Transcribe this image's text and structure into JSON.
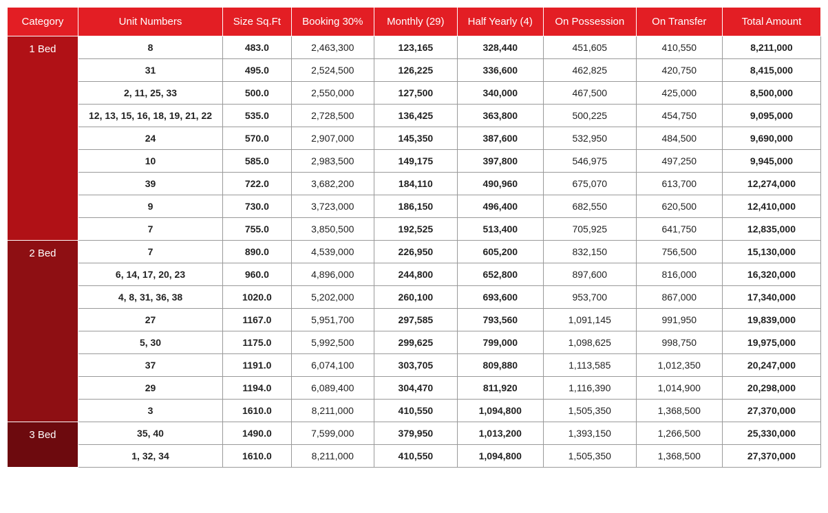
{
  "colors": {
    "header_bg": "#e31e24",
    "cat_bg_1": "#b01116",
    "cat_bg_2": "#8e0f13",
    "cat_bg_3": "#6d0a0e",
    "border": "#999999",
    "text": "#222222",
    "white": "#ffffff"
  },
  "columns": [
    {
      "label": "Category"
    },
    {
      "label": "Unit Numbers"
    },
    {
      "label": "Size Sq.Ft"
    },
    {
      "label": "Booking 30%"
    },
    {
      "label": "Monthly (29)"
    },
    {
      "label": "Half Yearly (4)"
    },
    {
      "label": "On Possession"
    },
    {
      "label": "On Transfer"
    },
    {
      "label": "Total Amount"
    }
  ],
  "bold_columns": [
    true,
    true,
    false,
    true,
    true,
    false,
    false,
    true
  ],
  "categories": [
    {
      "label": "1 Bed",
      "bg": "#b01116",
      "rows": [
        [
          "8",
          "483.0",
          "2,463,300",
          "123,165",
          "328,440",
          "451,605",
          "410,550",
          "8,211,000"
        ],
        [
          "31",
          "495.0",
          "2,524,500",
          "126,225",
          "336,600",
          "462,825",
          "420,750",
          "8,415,000"
        ],
        [
          "2, 11, 25, 33",
          "500.0",
          "2,550,000",
          "127,500",
          "340,000",
          "467,500",
          "425,000",
          "8,500,000"
        ],
        [
          "12, 13, 15, 16, 18, 19, 21, 22",
          "535.0",
          "2,728,500",
          "136,425",
          "363,800",
          "500,225",
          "454,750",
          "9,095,000"
        ],
        [
          "24",
          "570.0",
          "2,907,000",
          "145,350",
          "387,600",
          "532,950",
          "484,500",
          "9,690,000"
        ],
        [
          "10",
          "585.0",
          "2,983,500",
          "149,175",
          "397,800",
          "546,975",
          "497,250",
          "9,945,000"
        ],
        [
          "39",
          "722.0",
          "3,682,200",
          "184,110",
          "490,960",
          "675,070",
          "613,700",
          "12,274,000"
        ],
        [
          "9",
          "730.0",
          "3,723,000",
          "186,150",
          "496,400",
          "682,550",
          "620,500",
          "12,410,000"
        ],
        [
          "7",
          "755.0",
          "3,850,500",
          "192,525",
          "513,400",
          "705,925",
          "641,750",
          "12,835,000"
        ]
      ]
    },
    {
      "label": "2 Bed",
      "bg": "#8e0f13",
      "rows": [
        [
          "7",
          "890.0",
          "4,539,000",
          "226,950",
          "605,200",
          "832,150",
          "756,500",
          "15,130,000"
        ],
        [
          "6, 14, 17, 20, 23",
          "960.0",
          "4,896,000",
          "244,800",
          "652,800",
          "897,600",
          "816,000",
          "16,320,000"
        ],
        [
          "4, 8, 31, 36, 38",
          "1020.0",
          "5,202,000",
          "260,100",
          "693,600",
          "953,700",
          "867,000",
          "17,340,000"
        ],
        [
          "27",
          "1167.0",
          "5,951,700",
          "297,585",
          "793,560",
          "1,091,145",
          "991,950",
          "19,839,000"
        ],
        [
          "5, 30",
          "1175.0",
          "5,992,500",
          "299,625",
          "799,000",
          "1,098,625",
          "998,750",
          "19,975,000"
        ],
        [
          "37",
          "1191.0",
          "6,074,100",
          "303,705",
          "809,880",
          "1,113,585",
          "1,012,350",
          "20,247,000"
        ],
        [
          "29",
          "1194.0",
          "6,089,400",
          "304,470",
          "811,920",
          "1,116,390",
          "1,014,900",
          "20,298,000"
        ],
        [
          "3",
          "1610.0",
          "8,211,000",
          "410,550",
          "1,094,800",
          "1,505,350",
          "1,368,500",
          "27,370,000"
        ]
      ]
    },
    {
      "label": "3 Bed",
      "bg": "#6d0a0e",
      "rows": [
        [
          "35, 40",
          "1490.0",
          "7,599,000",
          "379,950",
          "1,013,200",
          "1,393,150",
          "1,266,500",
          "25,330,000"
        ],
        [
          "1, 32, 34",
          "1610.0",
          "8,211,000",
          "410,550",
          "1,094,800",
          "1,505,350",
          "1,368,500",
          "27,370,000"
        ]
      ]
    }
  ]
}
